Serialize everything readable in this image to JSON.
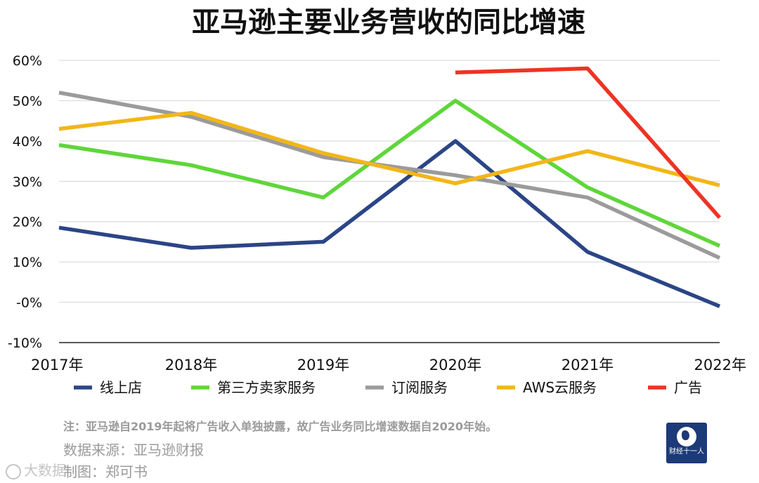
{
  "chart_data": {
    "type": "line",
    "title": "亚马逊主要业务营收的同比增速",
    "xlabel": "",
    "ylabel": "",
    "categories": [
      "2017年",
      "2018年",
      "2019年",
      "2020年",
      "2021年",
      "2022年"
    ],
    "ylim": [
      -10,
      60
    ],
    "yticks": [
      60,
      50,
      40,
      30,
      20,
      10,
      0,
      -10
    ],
    "ytick_labels": [
      "60%",
      "50%",
      "40%",
      "30%",
      "20%",
      "10%",
      "-0%",
      "-10%"
    ],
    "grid": true,
    "legend_position": "bottom",
    "series": [
      {
        "name": "线上店",
        "color": "#2b4586",
        "values": [
          18.5,
          13.5,
          15,
          40,
          12.5,
          -1
        ]
      },
      {
        "name": "第三方卖家服务",
        "color": "#5fd63a",
        "values": [
          39,
          34,
          26,
          50,
          28.5,
          14
        ]
      },
      {
        "name": "订阅服务",
        "color": "#9b9b9b",
        "values": [
          52,
          46,
          36,
          31.5,
          26,
          11
        ]
      },
      {
        "name": "AWS云服务",
        "color": "#f2b619",
        "values": [
          43,
          47,
          37,
          29.5,
          37.5,
          29
        ]
      },
      {
        "name": "广告",
        "color": "#ee3324",
        "values": [
          null,
          null,
          null,
          57,
          58,
          21
        ]
      }
    ]
  },
  "footer": {
    "note": "注：亚马逊自2019年起将广告收入单独披露，故广告业务同比增速数据自2020年始。",
    "source": "数据来源：亚马逊财报",
    "editor": "制图：郑可书",
    "watermark": "大数据",
    "logo_text": "财经十一人"
  }
}
